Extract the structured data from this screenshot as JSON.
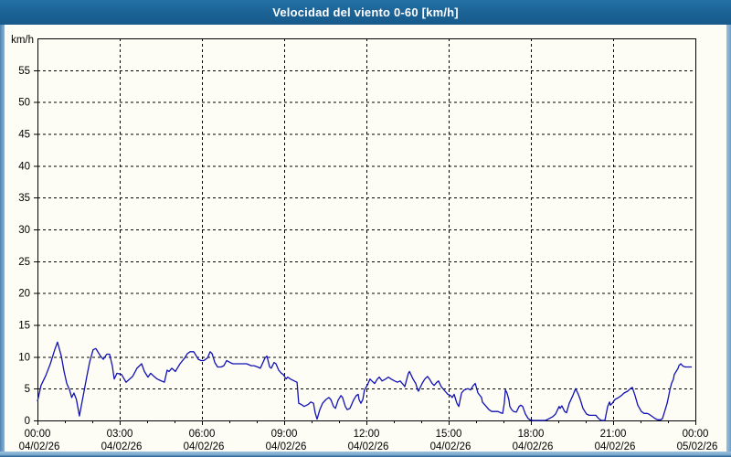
{
  "window": {
    "title": "Velocidad del viento 0-60 [km/h]"
  },
  "colors": {
    "titlebar": "#1b6295",
    "border_light": "#8db4d4",
    "border_dark": "#1d5a8c",
    "plot_background": "#fdfdf6",
    "grid": "#000000",
    "line": "#1111b4"
  },
  "chart_data": {
    "type": "line",
    "title": "Velocidad del viento 0-60 [km/h]",
    "xlabel": "",
    "ylabel": "km/h",
    "ylim": [
      0,
      60
    ],
    "x_hours_span": 24,
    "grid": "dashed",
    "legend_position": "none",
    "yticks": [
      0,
      5,
      10,
      15,
      20,
      25,
      30,
      35,
      40,
      45,
      50,
      55
    ],
    "xticks": [
      {
        "hour": 0,
        "time": "00:00",
        "date": "04/02/26"
      },
      {
        "hour": 3,
        "time": "03:00",
        "date": "04/02/26"
      },
      {
        "hour": 6,
        "time": "06:00",
        "date": "04/02/26"
      },
      {
        "hour": 9,
        "time": "09:00",
        "date": "04/02/26"
      },
      {
        "hour": 12,
        "time": "12:00",
        "date": "04/02/26"
      },
      {
        "hour": 15,
        "time": "15:00",
        "date": "04/02/26"
      },
      {
        "hour": 18,
        "time": "18:00",
        "date": "04/02/26"
      },
      {
        "hour": 21,
        "time": "21:00",
        "date": "04/02/26"
      },
      {
        "hour": 24,
        "time": "00:00",
        "date": "05/02/26"
      }
    ],
    "series": [
      {
        "name": "Velocidad del viento (km/h)",
        "points": [
          [
            0.0,
            3.0
          ],
          [
            0.13,
            5.5
          ],
          [
            0.3,
            7.0
          ],
          [
            0.47,
            8.9
          ],
          [
            0.63,
            11.1
          ],
          [
            0.73,
            12.3
          ],
          [
            0.87,
            10.1
          ],
          [
            0.97,
            7.7
          ],
          [
            1.07,
            5.8
          ],
          [
            1.17,
            4.8
          ],
          [
            1.25,
            3.6
          ],
          [
            1.33,
            4.3
          ],
          [
            1.42,
            3.3
          ],
          [
            1.53,
            0.7
          ],
          [
            1.7,
            4.6
          ],
          [
            1.8,
            6.9
          ],
          [
            1.9,
            9.1
          ],
          [
            2.03,
            11.1
          ],
          [
            2.13,
            11.3
          ],
          [
            2.3,
            10.1
          ],
          [
            2.4,
            9.6
          ],
          [
            2.53,
            10.4
          ],
          [
            2.63,
            10.4
          ],
          [
            2.73,
            8.6
          ],
          [
            2.8,
            6.5
          ],
          [
            2.9,
            7.4
          ],
          [
            3.07,
            7.2
          ],
          [
            3.23,
            6.0
          ],
          [
            3.47,
            6.9
          ],
          [
            3.63,
            8.2
          ],
          [
            3.8,
            8.9
          ],
          [
            3.9,
            7.7
          ],
          [
            4.03,
            6.8
          ],
          [
            4.13,
            7.4
          ],
          [
            4.23,
            7.0
          ],
          [
            4.37,
            6.5
          ],
          [
            4.47,
            6.3
          ],
          [
            4.63,
            6.0
          ],
          [
            4.73,
            7.9
          ],
          [
            4.8,
            7.7
          ],
          [
            4.9,
            8.2
          ],
          [
            5.03,
            7.7
          ],
          [
            5.2,
            8.9
          ],
          [
            5.37,
            9.8
          ],
          [
            5.47,
            10.5
          ],
          [
            5.57,
            10.8
          ],
          [
            5.7,
            10.8
          ],
          [
            5.87,
            9.6
          ],
          [
            5.97,
            9.4
          ],
          [
            6.07,
            9.4
          ],
          [
            6.2,
            9.8
          ],
          [
            6.3,
            10.8
          ],
          [
            6.37,
            10.5
          ],
          [
            6.47,
            9.1
          ],
          [
            6.57,
            8.4
          ],
          [
            6.7,
            8.4
          ],
          [
            6.8,
            8.6
          ],
          [
            6.9,
            9.4
          ],
          [
            7.03,
            9.1
          ],
          [
            7.13,
            8.9
          ],
          [
            7.3,
            8.9
          ],
          [
            7.47,
            8.9
          ],
          [
            7.63,
            8.9
          ],
          [
            7.8,
            8.6
          ],
          [
            7.9,
            8.6
          ],
          [
            8.03,
            8.4
          ],
          [
            8.13,
            8.2
          ],
          [
            8.3,
            9.8
          ],
          [
            8.37,
            10.1
          ],
          [
            8.47,
            8.4
          ],
          [
            8.53,
            8.2
          ],
          [
            8.63,
            9.1
          ],
          [
            8.7,
            8.9
          ],
          [
            8.8,
            7.9
          ],
          [
            8.9,
            7.4
          ],
          [
            8.97,
            7.2
          ],
          [
            9.07,
            6.5
          ],
          [
            9.13,
            6.8
          ],
          [
            9.23,
            6.5
          ],
          [
            9.37,
            6.2
          ],
          [
            9.47,
            6.0
          ],
          [
            9.53,
            2.7
          ],
          [
            9.63,
            2.5
          ],
          [
            9.73,
            2.2
          ],
          [
            9.87,
            2.5
          ],
          [
            9.97,
            2.9
          ],
          [
            10.07,
            2.7
          ],
          [
            10.13,
            1.2
          ],
          [
            10.2,
            0.2
          ],
          [
            10.3,
            1.7
          ],
          [
            10.4,
            2.7
          ],
          [
            10.53,
            3.3
          ],
          [
            10.63,
            3.6
          ],
          [
            10.7,
            3.3
          ],
          [
            10.8,
            2.2
          ],
          [
            10.87,
            1.9
          ],
          [
            10.97,
            3.2
          ],
          [
            11.07,
            3.9
          ],
          [
            11.13,
            3.6
          ],
          [
            11.23,
            2.2
          ],
          [
            11.3,
            1.7
          ],
          [
            11.4,
            1.9
          ],
          [
            11.53,
            3.2
          ],
          [
            11.63,
            3.9
          ],
          [
            11.7,
            4.1
          ],
          [
            11.73,
            3.3
          ],
          [
            11.8,
            2.7
          ],
          [
            11.87,
            3.3
          ],
          [
            11.93,
            4.8
          ],
          [
            12.03,
            5.5
          ],
          [
            12.13,
            6.5
          ],
          [
            12.2,
            6.2
          ],
          [
            12.3,
            5.8
          ],
          [
            12.4,
            6.5
          ],
          [
            12.47,
            6.8
          ],
          [
            12.57,
            6.2
          ],
          [
            12.7,
            6.5
          ],
          [
            12.8,
            6.8
          ],
          [
            12.9,
            6.5
          ],
          [
            13.03,
            6.2
          ],
          [
            13.13,
            6.0
          ],
          [
            13.23,
            6.2
          ],
          [
            13.37,
            5.5
          ],
          [
            13.4,
            5.3
          ],
          [
            13.53,
            7.4
          ],
          [
            13.57,
            7.7
          ],
          [
            13.7,
            6.5
          ],
          [
            13.8,
            5.8
          ],
          [
            13.87,
            4.8
          ],
          [
            13.9,
            4.6
          ],
          [
            14.03,
            5.8
          ],
          [
            14.13,
            6.5
          ],
          [
            14.23,
            6.9
          ],
          [
            14.3,
            6.5
          ],
          [
            14.4,
            5.8
          ],
          [
            14.47,
            5.5
          ],
          [
            14.57,
            6.0
          ],
          [
            14.63,
            6.2
          ],
          [
            14.73,
            5.3
          ],
          [
            14.87,
            4.6
          ],
          [
            14.97,
            4.1
          ],
          [
            15.07,
            3.9
          ],
          [
            15.13,
            3.6
          ],
          [
            15.2,
            4.1
          ],
          [
            15.3,
            2.7
          ],
          [
            15.37,
            2.2
          ],
          [
            15.47,
            4.3
          ],
          [
            15.57,
            4.8
          ],
          [
            15.7,
            5.0
          ],
          [
            15.8,
            4.8
          ],
          [
            15.9,
            5.5
          ],
          [
            15.97,
            5.8
          ],
          [
            16.07,
            4.3
          ],
          [
            16.2,
            3.6
          ],
          [
            16.23,
            2.9
          ],
          [
            16.37,
            2.2
          ],
          [
            16.47,
            1.7
          ],
          [
            16.57,
            1.4
          ],
          [
            16.8,
            1.4
          ],
          [
            16.9,
            1.2
          ],
          [
            16.97,
            1.1
          ],
          [
            17.03,
            2.7
          ],
          [
            17.07,
            4.8
          ],
          [
            17.13,
            4.3
          ],
          [
            17.2,
            3.2
          ],
          [
            17.23,
            2.2
          ],
          [
            17.3,
            1.7
          ],
          [
            17.37,
            1.4
          ],
          [
            17.47,
            1.3
          ],
          [
            17.57,
            2.2
          ],
          [
            17.63,
            2.4
          ],
          [
            17.7,
            2.2
          ],
          [
            17.8,
            1.0
          ],
          [
            17.9,
            0.3
          ],
          [
            17.97,
            0.1
          ],
          [
            18.07,
            0.0
          ],
          [
            18.53,
            0.0
          ],
          [
            18.63,
            0.2
          ],
          [
            18.8,
            0.6
          ],
          [
            18.9,
            1.0
          ],
          [
            19.03,
            2.2
          ],
          [
            19.07,
            1.9
          ],
          [
            19.13,
            2.3
          ],
          [
            19.23,
            1.4
          ],
          [
            19.3,
            1.2
          ],
          [
            19.4,
            2.7
          ],
          [
            19.53,
            3.9
          ],
          [
            19.63,
            5.0
          ],
          [
            19.73,
            4.1
          ],
          [
            19.8,
            3.3
          ],
          [
            19.9,
            1.9
          ],
          [
            20.03,
            1.0
          ],
          [
            20.13,
            0.8
          ],
          [
            20.37,
            0.8
          ],
          [
            20.47,
            0.3
          ],
          [
            20.57,
            0.0
          ],
          [
            20.7,
            0.0
          ],
          [
            20.8,
            2.2
          ],
          [
            20.87,
            2.9
          ],
          [
            20.9,
            2.4
          ],
          [
            20.97,
            2.7
          ],
          [
            21.07,
            3.3
          ],
          [
            21.2,
            3.6
          ],
          [
            21.3,
            3.9
          ],
          [
            21.4,
            4.3
          ],
          [
            21.53,
            4.6
          ],
          [
            21.63,
            5.0
          ],
          [
            21.7,
            5.2
          ],
          [
            21.8,
            3.9
          ],
          [
            21.9,
            2.4
          ],
          [
            22.03,
            1.4
          ],
          [
            22.13,
            1.1
          ],
          [
            22.23,
            1.1
          ],
          [
            22.3,
            1.0
          ],
          [
            22.4,
            0.7
          ],
          [
            22.53,
            0.3
          ],
          [
            22.63,
            0.1
          ],
          [
            22.73,
            0.1
          ],
          [
            22.8,
            0.3
          ],
          [
            22.9,
            1.7
          ],
          [
            22.97,
            2.7
          ],
          [
            23.03,
            3.9
          ],
          [
            23.07,
            4.8
          ],
          [
            23.13,
            5.8
          ],
          [
            23.2,
            6.5
          ],
          [
            23.23,
            7.2
          ],
          [
            23.3,
            7.7
          ],
          [
            23.37,
            8.2
          ],
          [
            23.4,
            8.6
          ],
          [
            23.47,
            8.9
          ],
          [
            23.53,
            8.6
          ],
          [
            23.57,
            8.5
          ],
          [
            23.63,
            8.4
          ],
          [
            23.8,
            8.4
          ],
          [
            23.87,
            8.4
          ]
        ]
      }
    ]
  }
}
